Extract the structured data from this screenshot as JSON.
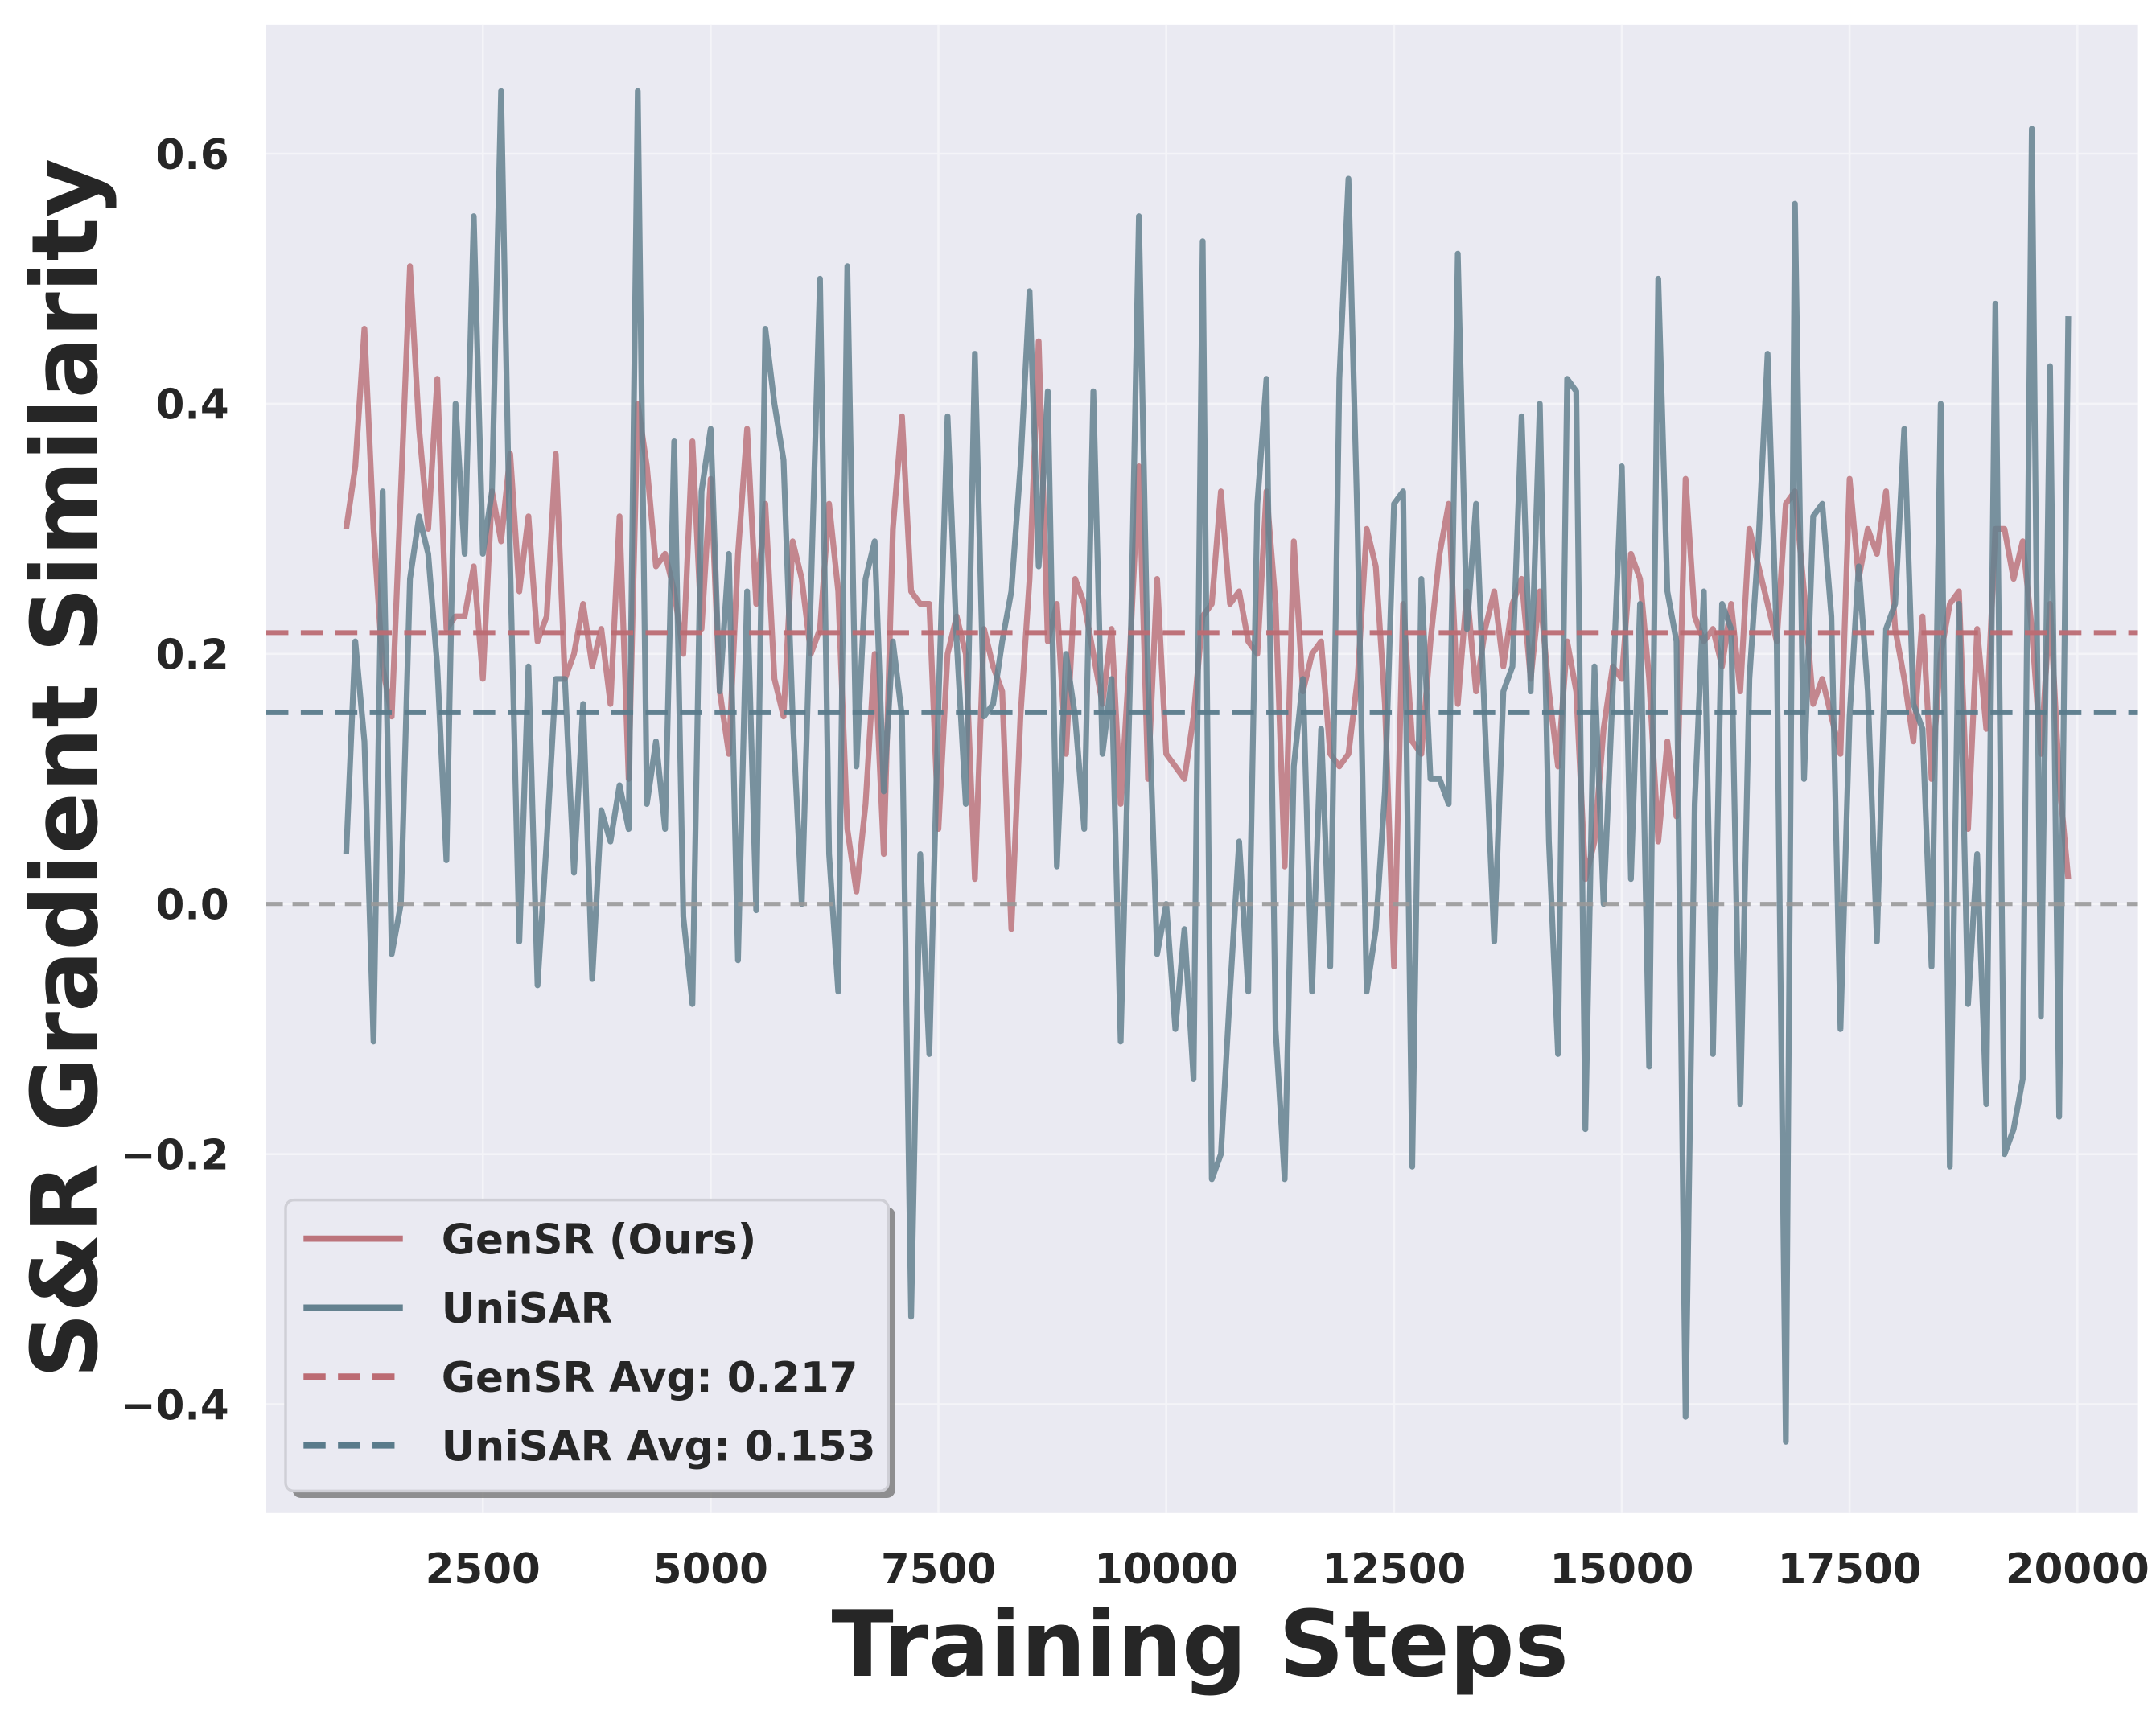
{
  "chart_data": {
    "type": "line",
    "x_label": "Training Steps",
    "y_label": "S&R Gradient Similarity",
    "x": [
      1000,
      1100,
      1200,
      1300,
      1400,
      1500,
      1600,
      1700,
      1800,
      1900,
      2000,
      2100,
      2200,
      2300,
      2400,
      2500,
      2600,
      2700,
      2800,
      2900,
      3000,
      3100,
      3200,
      3300,
      3400,
      3500,
      3600,
      3700,
      3800,
      3900,
      4000,
      4100,
      4200,
      4300,
      4400,
      4500,
      4600,
      4700,
      4800,
      4900,
      5000,
      5100,
      5200,
      5300,
      5400,
      5500,
      5600,
      5700,
      5800,
      5900,
      6000,
      6100,
      6200,
      6300,
      6400,
      6500,
      6600,
      6700,
      6800,
      6900,
      7000,
      7100,
      7200,
      7300,
      7400,
      7500,
      7600,
      7700,
      7800,
      7900,
      8000,
      8100,
      8200,
      8300,
      8400,
      8500,
      8600,
      8700,
      8800,
      8900,
      9000,
      9100,
      9200,
      9300,
      9400,
      9500,
      9600,
      9700,
      9800,
      9900,
      10000,
      10100,
      10200,
      10300,
      10400,
      10500,
      10600,
      10700,
      10800,
      10900,
      11000,
      11100,
      11200,
      11300,
      11400,
      11500,
      11600,
      11700,
      11800,
      11900,
      12000,
      12100,
      12200,
      12300,
      12400,
      12500,
      12600,
      12700,
      12800,
      12900,
      13000,
      13100,
      13200,
      13300,
      13400,
      13500,
      13600,
      13700,
      13800,
      13900,
      14000,
      14100,
      14200,
      14300,
      14400,
      14500,
      14600,
      14700,
      14800,
      14900,
      15000,
      15100,
      15200,
      15300,
      15400,
      15500,
      15600,
      15700,
      15800,
      15900,
      16000,
      16100,
      16200,
      16300,
      16400,
      16500,
      16600,
      16700,
      16800,
      16900,
      17000,
      17100,
      17200,
      17300,
      17400,
      17500,
      17600,
      17700,
      17800,
      17900,
      18000,
      18100,
      18200,
      18300,
      18400,
      18500,
      18600,
      18700,
      18800,
      18900,
      19000,
      19100,
      19200,
      19300,
      19400,
      19500,
      19600,
      19700,
      19800,
      19900
    ],
    "series": [
      {
        "name": "GenSR (Ours)",
        "color": "#bc747c",
        "values": [
          0.3,
          0.35,
          0.46,
          0.3,
          0.19,
          0.15,
          0.33,
          0.51,
          0.38,
          0.3,
          0.42,
          0.22,
          0.23,
          0.23,
          0.27,
          0.18,
          0.33,
          0.29,
          0.36,
          0.25,
          0.31,
          0.21,
          0.23,
          0.36,
          0.18,
          0.2,
          0.24,
          0.19,
          0.22,
          0.16,
          0.31,
          0.1,
          0.4,
          0.35,
          0.27,
          0.28,
          0.25,
          0.2,
          0.37,
          0.22,
          0.34,
          0.17,
          0.12,
          0.28,
          0.38,
          0.24,
          0.32,
          0.18,
          0.15,
          0.29,
          0.26,
          0.2,
          0.22,
          0.32,
          0.25,
          0.06,
          0.01,
          0.08,
          0.2,
          0.04,
          0.3,
          0.39,
          0.25,
          0.24,
          0.24,
          0.06,
          0.2,
          0.23,
          0.2,
          0.02,
          0.22,
          0.19,
          0.17,
          -0.02,
          0.15,
          0.26,
          0.45,
          0.21,
          0.24,
          0.12,
          0.26,
          0.24,
          0.2,
          0.16,
          0.22,
          0.08,
          0.2,
          0.35,
          0.1,
          0.26,
          0.12,
          0.11,
          0.1,
          0.15,
          0.23,
          0.24,
          0.33,
          0.24,
          0.25,
          0.21,
          0.2,
          0.33,
          0.24,
          0.03,
          0.29,
          0.17,
          0.2,
          0.21,
          0.12,
          0.11,
          0.12,
          0.18,
          0.3,
          0.27,
          0.16,
          -0.05,
          0.24,
          0.13,
          0.12,
          0.21,
          0.28,
          0.32,
          0.16,
          0.25,
          0.17,
          0.22,
          0.25,
          0.19,
          0.24,
          0.26,
          0.18,
          0.25,
          0.17,
          0.11,
          0.21,
          0.17,
          0.02,
          0.05,
          0.14,
          0.19,
          0.18,
          0.28,
          0.26,
          0.18,
          0.05,
          0.13,
          0.07,
          0.34,
          0.23,
          0.21,
          0.22,
          0.19,
          0.24,
          0.17,
          0.3,
          0.27,
          0.24,
          0.21,
          0.32,
          0.33,
          0.25,
          0.16,
          0.18,
          0.15,
          0.12,
          0.34,
          0.26,
          0.3,
          0.28,
          0.33,
          0.22,
          0.18,
          0.13,
          0.23,
          0.1,
          0.2,
          0.24,
          0.25,
          0.06,
          0.22,
          0.14,
          0.3,
          0.3,
          0.26,
          0.29,
          0.22,
          0.12,
          0.24,
          0.1,
          0.02
        ]
      },
      {
        "name": "UniSAR",
        "color": "#64818f",
        "values": [
          0.04,
          0.21,
          0.13,
          -0.11,
          0.33,
          -0.04,
          0.0,
          0.26,
          0.31,
          0.28,
          0.19,
          0.035,
          0.4,
          0.28,
          0.55,
          0.28,
          0.33,
          0.65,
          0.27,
          -0.03,
          0.19,
          -0.065,
          0.05,
          0.18,
          0.18,
          0.025,
          0.16,
          -0.06,
          0.075,
          0.05,
          0.095,
          0.06,
          0.65,
          0.08,
          0.13,
          0.06,
          0.37,
          -0.01,
          -0.08,
          0.33,
          0.38,
          0.17,
          0.28,
          -0.045,
          0.25,
          -0.005,
          0.46,
          0.4,
          0.355,
          0.15,
          0.0,
          0.25,
          0.5,
          0.04,
          -0.07,
          0.51,
          0.11,
          0.26,
          0.29,
          0.09,
          0.21,
          0.15,
          -0.33,
          0.04,
          -0.12,
          0.16,
          0.39,
          0.21,
          0.08,
          0.44,
          0.15,
          0.16,
          0.21,
          0.25,
          0.35,
          0.49,
          0.27,
          0.41,
          0.03,
          0.2,
          0.15,
          0.06,
          0.41,
          0.12,
          0.18,
          -0.11,
          0.17,
          0.55,
          0.18,
          -0.04,
          0.0,
          -0.1,
          -0.02,
          -0.14,
          0.53,
          -0.22,
          -0.2,
          -0.07,
          0.05,
          -0.07,
          0.32,
          0.42,
          -0.1,
          -0.22,
          0.11,
          0.18,
          -0.07,
          0.14,
          -0.05,
          0.42,
          0.58,
          0.3,
          -0.07,
          -0.02,
          0.09,
          0.32,
          0.33,
          -0.21,
          0.26,
          0.1,
          0.1,
          0.08,
          0.52,
          0.22,
          0.32,
          0.14,
          -0.03,
          0.17,
          0.19,
          0.39,
          0.17,
          0.4,
          0.05,
          -0.12,
          0.42,
          0.41,
          -0.18,
          0.19,
          0.0,
          0.17,
          0.35,
          0.02,
          0.24,
          -0.13,
          0.5,
          0.25,
          0.21,
          -0.41,
          0.08,
          0.25,
          -0.12,
          0.24,
          0.22,
          -0.16,
          0.18,
          0.29,
          0.44,
          0.21,
          -0.43,
          0.56,
          0.1,
          0.31,
          0.32,
          0.23,
          -0.1,
          0.15,
          0.27,
          0.17,
          -0.03,
          0.22,
          0.24,
          0.38,
          0.16,
          0.14,
          -0.05,
          0.4,
          -0.21,
          0.24,
          -0.08,
          0.04,
          -0.16,
          0.48,
          -0.2,
          -0.18,
          -0.14,
          0.62,
          -0.09,
          0.43,
          -0.17,
          0.47
        ]
      }
    ],
    "reference_lines": [
      {
        "name": "GenSR Avg: 0.217",
        "value": 0.217,
        "color": "#bc6b73"
      },
      {
        "name": "UniSAR Avg: 0.153",
        "value": 0.153,
        "color": "#5a7b8b"
      }
    ],
    "zero_line": {
      "value": 0,
      "color": "#999999"
    },
    "xlim": [
      123,
      20665
    ],
    "ylim": [
      -0.487,
      0.703
    ],
    "xticks": [
      2500,
      5000,
      7500,
      10000,
      12500,
      15000,
      17500,
      20000
    ],
    "yticks": [
      {
        "value": -0.4,
        "label": "−0.4"
      },
      {
        "value": -0.2,
        "label": "−0.2"
      },
      {
        "value": 0,
        "label": "0.0"
      },
      0.2,
      0.4,
      0.6
    ],
    "grid": true,
    "legend": "lower left"
  }
}
